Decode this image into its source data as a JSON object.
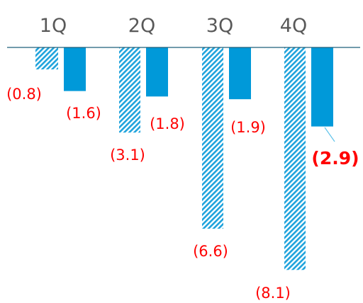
{
  "chart_data": {
    "type": "bar",
    "categories": [
      "1Q",
      "2Q",
      "3Q",
      "4Q"
    ],
    "series": [
      {
        "values": [
          -0.8,
          -3.1,
          -6.6,
          -8.1
        ],
        "labels": [
          "(0.8)",
          "(3.1)",
          "(6.6)",
          "(8.1)"
        ],
        "style": "hatched",
        "color": "#1fa3dc"
      },
      {
        "values": [
          -1.6,
          -1.8,
          -1.9,
          -2.9
        ],
        "labels": [
          "(1.6)",
          "(1.8)",
          "(1.9)",
          "(2.9)"
        ],
        "style": "solid",
        "color": "#0099d9",
        "highlight_index": 3
      }
    ],
    "ylim": [
      -8.5,
      0
    ],
    "grid": false,
    "legend": "none",
    "label_color": "#ff0000",
    "category_color": "#595959",
    "axis_color": "#1f5f7a"
  }
}
